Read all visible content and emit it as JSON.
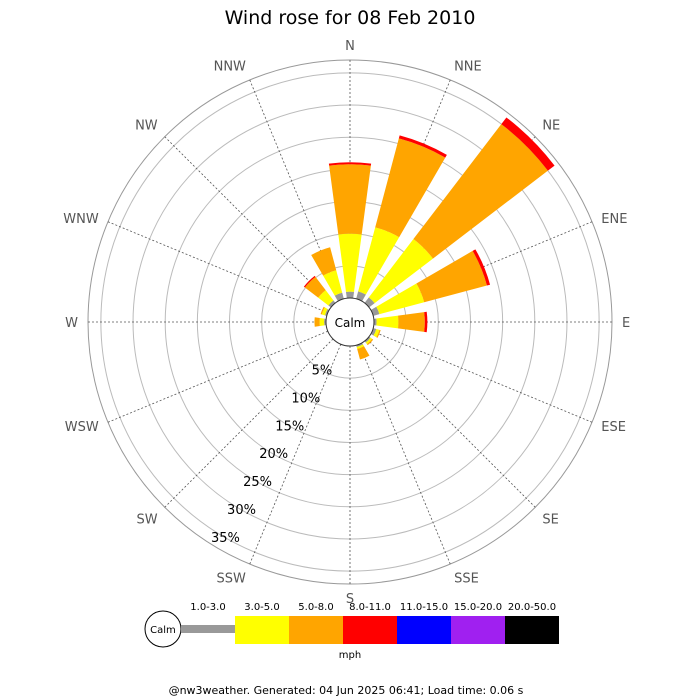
{
  "chart_data": {
    "type": "wind-rose",
    "title": "Wind rose for 08 Feb 2010",
    "directions": [
      "N",
      "NNE",
      "NE",
      "ENE",
      "E",
      "ESE",
      "SE",
      "SSE",
      "S",
      "SSW",
      "SW",
      "WSW",
      "W",
      "WNW",
      "NW",
      "NNW"
    ],
    "radial_unit": "%",
    "radial_ticks": [
      5,
      10,
      15,
      20,
      25,
      30,
      35
    ],
    "radial_tick_labels": [
      "5%",
      "10%",
      "15%",
      "20%",
      "25%",
      "30%",
      "35%"
    ],
    "rmax": 37,
    "calm_label": "Calm",
    "speed_unit": "mph",
    "legend_calm_label": "Calm",
    "speed_bins": [
      {
        "label": "1.0-3.0",
        "color": "#999999"
      },
      {
        "label": "3.0-5.0",
        "color": "#ffff00"
      },
      {
        "label": "5.0-8.0",
        "color": "#ffa500"
      },
      {
        "label": "8.0-11.0",
        "color": "#ff0000"
      },
      {
        "label": "11.0-15.0",
        "color": "#0000ff"
      },
      {
        "label": "15.0-20.0",
        "color": "#a020f0"
      },
      {
        "label": "20.0-50.0",
        "color": "#000000"
      }
    ],
    "cumulative_percent": {
      "N": [
        1.0,
        10.0,
        20.8,
        21.1
      ],
      "NNE": [
        1.2,
        11.5,
        25.8,
        26.3
      ],
      "NE": [
        1.1,
        12.5,
        35.0,
        36.3
      ],
      "ENE": [
        1.0,
        8.2,
        18.3,
        18.8
      ],
      "E": [
        0.4,
        3.8,
        7.9,
        8.3
      ],
      "ESE": [
        0.5,
        1.0,
        1.2,
        1.2
      ],
      "SE": [
        0.3,
        0.6,
        0.8,
        0.8
      ],
      "SSE": [
        0.3,
        0.6,
        2.3,
        2.3
      ],
      "S": [
        0.0,
        0.0,
        0.0,
        0.0
      ],
      "SSW": [
        0.0,
        0.0,
        0.0,
        0.0
      ],
      "SW": [
        0.0,
        0.0,
        0.0,
        0.0
      ],
      "WSW": [
        0.0,
        0.0,
        0.0,
        0.0
      ],
      "W": [
        0.3,
        1.0,
        1.8,
        1.8
      ],
      "WNW": [
        0.3,
        0.8,
        1.0,
        1.0
      ],
      "NW": [
        0.5,
        2.5,
        5.1,
        5.3
      ],
      "NNW": [
        1.0,
        4.6,
        8.3,
        8.3
      ]
    }
  },
  "footer": "@nw3weather. Generated: 04 Jun 2025 06:41; Load time: 0.06 s"
}
